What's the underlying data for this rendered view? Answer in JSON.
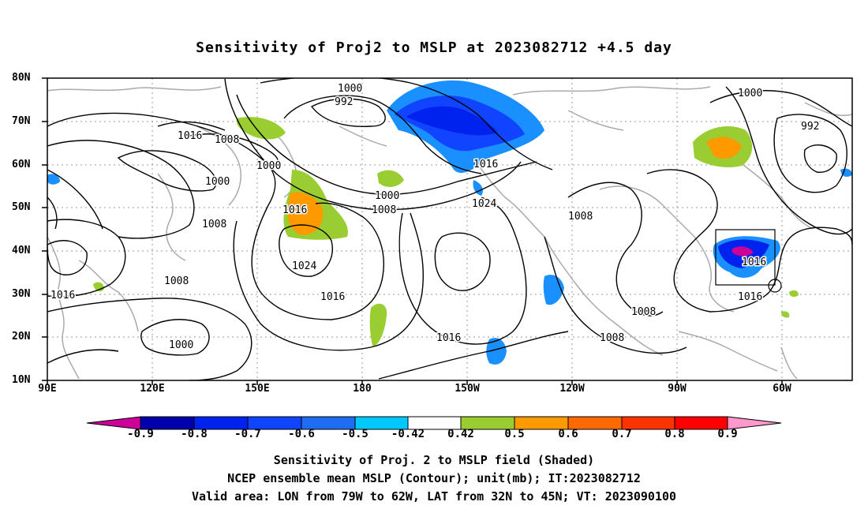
{
  "title": "Sensitivity of Proj2 to MSLP at 2023082712 +4.5 day",
  "axes": {
    "lat_ticks": [
      "80N",
      "70N",
      "60N",
      "50N",
      "40N",
      "30N",
      "20N",
      "10N"
    ],
    "lon_ticks": [
      "90E",
      "120E",
      "150E",
      "180",
      "150W",
      "120W",
      "90W",
      "60W"
    ]
  },
  "contour_labels": [
    {
      "text": "1000"
    },
    {
      "text": "992"
    },
    {
      "text": "1016"
    },
    {
      "text": "1008"
    },
    {
      "text": "1000"
    },
    {
      "text": "1000"
    },
    {
      "text": "1008"
    },
    {
      "text": "1016"
    },
    {
      "text": "1024"
    },
    {
      "text": "1000"
    },
    {
      "text": "1008"
    },
    {
      "text": "1016"
    },
    {
      "text": "1024"
    },
    {
      "text": "1008"
    },
    {
      "text": "1008"
    },
    {
      "text": "1016"
    },
    {
      "text": "1000"
    },
    {
      "text": "1016"
    },
    {
      "text": "1008"
    },
    {
      "text": "1008"
    },
    {
      "text": "1016"
    },
    {
      "text": "1016"
    },
    {
      "text": "1000"
    },
    {
      "text": "992"
    }
  ],
  "colorbar": {
    "labels": [
      "-0.9",
      "-0.8",
      "-0.7",
      "-0.6",
      "-0.5",
      "-0.42",
      "0.42",
      "0.5",
      "0.6",
      "0.7",
      "0.8",
      "0.9"
    ],
    "colors": [
      "#cc0099",
      "#0000aa",
      "#0022ee",
      "#1144ff",
      "#1e6cf0",
      "#1a90ff",
      "#00c8ff",
      "#ffffff",
      "#9acd32",
      "#ff9900",
      "#ff6a00",
      "#ff3300",
      "#ff0000",
      "#ff99cc"
    ]
  },
  "captions": [
    "Sensitivity of Proj. 2 to MSLP field (Shaded)",
    "NCEP ensemble mean MSLP (Contour); unit(mb); IT:2023082712",
    "Valid area: LON from 79W to 62W, LAT from 32N to 45N; VT: 2023090100"
  ]
}
